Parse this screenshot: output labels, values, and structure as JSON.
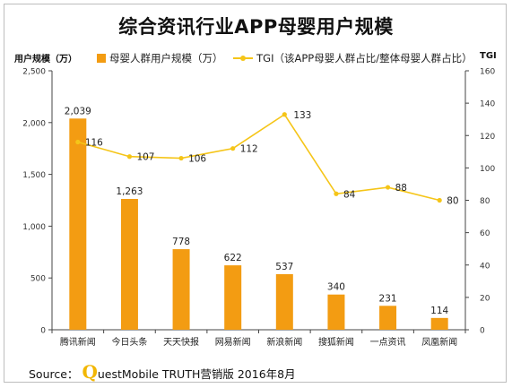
{
  "title": "综合资讯行业APP母婴用户规模",
  "y_left_label": "用户规模（万）",
  "y_right_label": "TGI",
  "legend": {
    "bar_label": "母婴人群用户规模（万）",
    "line_label": "TGI（该APP母婴人群占比/整体母婴人群占比）"
  },
  "source": {
    "prefix": "Source：",
    "q_letter": "Q",
    "rest": "uestMobile TRUTH营销版 2016年8月"
  },
  "colors": {
    "bar": "#f39c12",
    "line": "#f5c518",
    "axis": "#444444",
    "grid": "#d8d8d8"
  },
  "chart_data": {
    "type": "bar",
    "categories": [
      "腾讯新闻",
      "今日头条",
      "天天快报",
      "网易新闻",
      "新浪新闻",
      "搜狐新闻",
      "一点资讯",
      "凤凰新闻"
    ],
    "series": [
      {
        "name": "母婴人群用户规模（万）",
        "type": "bar",
        "axis": "left",
        "values": [
          2039,
          1263,
          778,
          622,
          537,
          340,
          231,
          114
        ],
        "labels": [
          "2,039",
          "1,263",
          "778",
          "622",
          "537",
          "340",
          "231",
          "114"
        ]
      },
      {
        "name": "TGI（该APP母婴人群占比/整体母婴人群占比）",
        "type": "line",
        "axis": "right",
        "values": [
          116,
          107,
          106,
          112,
          133,
          84,
          88,
          80
        ],
        "labels": [
          "116",
          "107",
          "106",
          "112",
          "133",
          "84",
          "88",
          "80"
        ]
      }
    ],
    "ylim_left": [
      0,
      2500
    ],
    "yticks_left": [
      "0",
      "500",
      "1,000",
      "1,500",
      "2,000",
      "2,500"
    ],
    "ylim_right": [
      0,
      160
    ],
    "yticks_right": [
      "0",
      "20",
      "40",
      "60",
      "80",
      "100",
      "120",
      "140",
      "160"
    ],
    "legend_position": "top",
    "grid": false
  }
}
